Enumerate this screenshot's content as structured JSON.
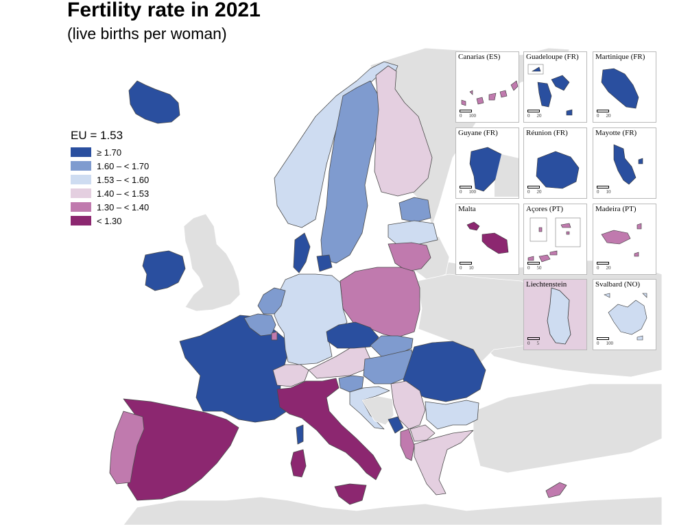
{
  "title": "Fertility rate in 2021",
  "subtitle": "(live births per woman)",
  "colors": {
    "c1": "#2a4f9f",
    "c2": "#7f9bcf",
    "c3": "#cedcf1",
    "c4": "#e4cfe0",
    "c5": "#c07aae",
    "c6": "#8c2770",
    "nodata": "#e0e0e0",
    "sea": "#ffffff"
  },
  "legend": {
    "title": "EU = 1.53",
    "classes": [
      {
        "label": "≥ 1.70",
        "color": "#2a4f9f"
      },
      {
        "label": "1.60 – < 1.70",
        "color": "#7f9bcf"
      },
      {
        "label": "1.53 – < 1.60",
        "color": "#cedcf1"
      },
      {
        "label": "1.40 – < 1.53",
        "color": "#e4cfe0"
      },
      {
        "label": "1.30 – < 1.40",
        "color": "#c07aae"
      },
      {
        "label": "< 1.30",
        "color": "#8c2770"
      }
    ]
  },
  "insets": [
    {
      "name": "Canarias (ES)",
      "scale": [
        "0",
        "100"
      ]
    },
    {
      "name": "Guadeloupe (FR)",
      "scale": [
        "0",
        "20"
      ]
    },
    {
      "name": "Martinique (FR)",
      "scale": [
        "0",
        "20"
      ]
    },
    {
      "name": "Guyane (FR)",
      "scale": [
        "0",
        "100"
      ]
    },
    {
      "name": "Réunion (FR)",
      "scale": [
        "0",
        "20"
      ]
    },
    {
      "name": "Mayotte (FR)",
      "scale": [
        "0",
        "10"
      ]
    },
    {
      "name": "Malta",
      "scale": [
        "0",
        "10"
      ]
    },
    {
      "name": "Açores (PT)",
      "scale": [
        "0",
        "50"
      ]
    },
    {
      "name": "Madeira (PT)",
      "scale": [
        "0",
        "20"
      ]
    },
    {
      "name": "Liechtenstein",
      "scale": [
        "0",
        "5"
      ]
    },
    {
      "name": "Svalbard (NO)",
      "scale": [
        "0",
        "100"
      ]
    }
  ],
  "regions": [
    {
      "name": "Iceland",
      "cls": "c1"
    },
    {
      "name": "Ireland",
      "cls": "c1"
    },
    {
      "name": "United Kingdom",
      "cls": "nodata"
    },
    {
      "name": "France",
      "cls": "c1"
    },
    {
      "name": "Spain",
      "cls": "c6"
    },
    {
      "name": "Portugal",
      "cls": "c5"
    },
    {
      "name": "Norway",
      "cls": "c3"
    },
    {
      "name": "Sweden",
      "cls": "c2"
    },
    {
      "name": "Finland",
      "cls": "c4"
    },
    {
      "name": "Denmark",
      "cls": "c1"
    },
    {
      "name": "Estonia",
      "cls": "c2"
    },
    {
      "name": "Latvia",
      "cls": "c3"
    },
    {
      "name": "Lithuania",
      "cls": "c5"
    },
    {
      "name": "Poland",
      "cls": "c5"
    },
    {
      "name": "Germany",
      "cls": "c3"
    },
    {
      "name": "Netherlands",
      "cls": "c2"
    },
    {
      "name": "Belgium",
      "cls": "c2"
    },
    {
      "name": "Luxembourg",
      "cls": "c5"
    },
    {
      "name": "Switzerland",
      "cls": "c4"
    },
    {
      "name": "Austria",
      "cls": "c4"
    },
    {
      "name": "Czechia",
      "cls": "c1"
    },
    {
      "name": "Slovakia",
      "cls": "c2"
    },
    {
      "name": "Hungary",
      "cls": "c2"
    },
    {
      "name": "Romania",
      "cls": "c1"
    },
    {
      "name": "Slovenia",
      "cls": "c2"
    },
    {
      "name": "Croatia",
      "cls": "c3"
    },
    {
      "name": "Bosnia and Herzegovina",
      "cls": "nodata"
    },
    {
      "name": "Serbia",
      "cls": "c4"
    },
    {
      "name": "Montenegro",
      "cls": "c1"
    },
    {
      "name": "Albania",
      "cls": "c5"
    },
    {
      "name": "North Macedonia",
      "cls": "c4"
    },
    {
      "name": "Bulgaria",
      "cls": "c3"
    },
    {
      "name": "Greece",
      "cls": "c4"
    },
    {
      "name": "Italy",
      "cls": "c6"
    },
    {
      "name": "Sardinia",
      "cls": "c6"
    },
    {
      "name": "Corsica",
      "cls": "c1"
    },
    {
      "name": "Sicily",
      "cls": "c6"
    },
    {
      "name": "Cyprus",
      "cls": "c5"
    },
    {
      "name": "Belarus",
      "cls": "nodata"
    },
    {
      "name": "Ukraine",
      "cls": "nodata"
    },
    {
      "name": "Russia",
      "cls": "nodata"
    },
    {
      "name": "Turkey",
      "cls": "nodata"
    }
  ]
}
